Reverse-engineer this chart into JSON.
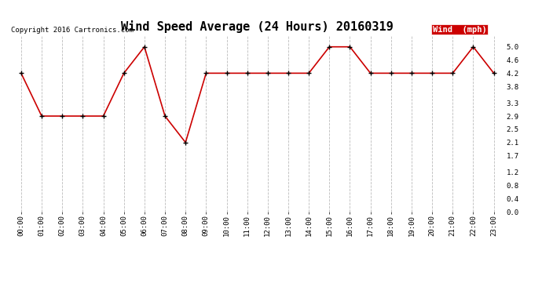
{
  "title": "Wind Speed Average (24 Hours) 20160319",
  "copyright_text": "Copyright 2016 Cartronics.com",
  "hours": [
    "00:00",
    "01:00",
    "02:00",
    "03:00",
    "04:00",
    "05:00",
    "06:00",
    "07:00",
    "08:00",
    "09:00",
    "10:00",
    "11:00",
    "12:00",
    "13:00",
    "14:00",
    "15:00",
    "16:00",
    "17:00",
    "18:00",
    "19:00",
    "20:00",
    "21:00",
    "22:00",
    "23:00"
  ],
  "wind_values": [
    4.2,
    2.9,
    2.9,
    2.9,
    2.9,
    4.2,
    5.0,
    2.9,
    2.1,
    4.2,
    4.2,
    4.2,
    4.2,
    4.2,
    4.2,
    5.0,
    5.0,
    4.2,
    4.2,
    4.2,
    4.2,
    4.2,
    5.0,
    4.2
  ],
  "line_color": "#cc0000",
  "marker_color": "#000000",
  "bg_color": "#ffffff",
  "grid_color": "#bbbbbb",
  "legend_label": "Wind  (mph)",
  "legend_bg": "#cc0000",
  "legend_fg": "#ffffff",
  "ylim": [
    0.0,
    5.35
  ],
  "yticks": [
    0.0,
    0.4,
    0.8,
    1.2,
    1.7,
    2.1,
    2.5,
    2.9,
    3.3,
    3.8,
    4.2,
    4.6,
    5.0
  ],
  "title_fontsize": 11,
  "copyright_fontsize": 6.5,
  "axis_fontsize": 6.5,
  "legend_fontsize": 7.5
}
